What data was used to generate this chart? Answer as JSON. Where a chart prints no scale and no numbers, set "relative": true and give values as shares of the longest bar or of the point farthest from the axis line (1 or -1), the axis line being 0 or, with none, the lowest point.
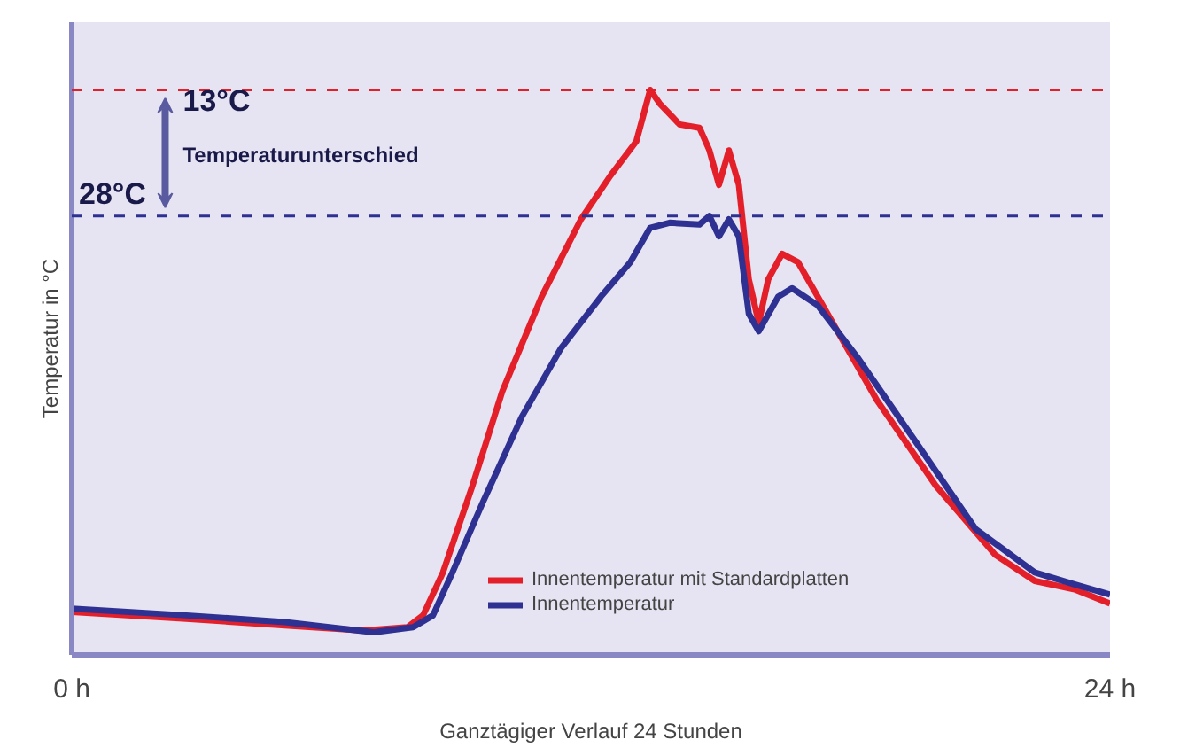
{
  "chart_data": {
    "type": "line",
    "relative": true,
    "xlabel": "Ganztägiger Verlauf 24 Stunden",
    "ylabel": "Temperatur in °C",
    "xlim": [
      0,
      24
    ],
    "xticks": [
      {
        "value": 0,
        "label": "0 h"
      },
      {
        "value": 24,
        "label": "24 h"
      }
    ],
    "annotations": [
      "13°C",
      "Temperaturunterschied"
    ],
    "ref_lines": [
      {
        "axis": "y",
        "value": 1,
        "label": null,
        "color": "#e3202a",
        "line_style": "dashed"
      },
      {
        "axis": "y",
        "value": 0.777,
        "label": "28°C",
        "color": "#2e3192",
        "line_style": "dashed"
      }
    ],
    "legend": "bottom right",
    "line_style": "solid",
    "marker": "none",
    "series": [
      {
        "name": "Innentemperatur mit Standardplatten",
        "color": "#e3202a",
        "x": [
          0,
          2.65,
          4.93,
          6.75,
          7.76,
          8.12,
          8.58,
          9.26,
          9.95,
          10.86,
          11.77,
          12.45,
          13.05,
          13.37,
          13.59,
          14.05,
          14.51,
          14.74,
          14.96,
          15.19,
          15.42,
          15.65,
          15.88,
          16.1,
          16.42,
          16.79,
          17.47,
          18.61,
          19.98,
          21.35,
          22.26,
          23.18,
          24
        ],
        "values": [
          0.076,
          0.064,
          0.052,
          0.043,
          0.049,
          0.07,
          0.146,
          0.299,
          0.466,
          0.634,
          0.771,
          0.848,
          0.909,
          1,
          0.976,
          0.939,
          0.933,
          0.893,
          0.832,
          0.893,
          0.832,
          0.665,
          0.588,
          0.665,
          0.71,
          0.695,
          0.604,
          0.451,
          0.299,
          0.177,
          0.131,
          0.116,
          0.091
        ]
      },
      {
        "name": "Innentemperatur",
        "color": "#2e3192",
        "x": [
          0,
          2.65,
          4.93,
          6.98,
          7.89,
          8.35,
          8.8,
          9.49,
          10.4,
          11.31,
          12.23,
          12.91,
          13.37,
          13.82,
          14.51,
          14.74,
          14.96,
          15.19,
          15.42,
          15.65,
          15.88,
          16.33,
          16.65,
          17.24,
          18.16,
          19.53,
          20.89,
          22.26,
          23.18,
          24
        ],
        "values": [
          0.082,
          0.07,
          0.058,
          0.04,
          0.049,
          0.07,
          0.146,
          0.268,
          0.421,
          0.543,
          0.634,
          0.695,
          0.756,
          0.765,
          0.762,
          0.777,
          0.741,
          0.771,
          0.741,
          0.604,
          0.573,
          0.634,
          0.649,
          0.619,
          0.527,
          0.375,
          0.223,
          0.146,
          0.125,
          0.107
        ]
      }
    ]
  }
}
